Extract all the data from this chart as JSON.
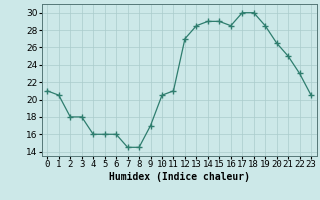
{
  "x": [
    0,
    1,
    2,
    3,
    4,
    5,
    6,
    7,
    8,
    9,
    10,
    11,
    12,
    13,
    14,
    15,
    16,
    17,
    18,
    19,
    20,
    21,
    22,
    23
  ],
  "y": [
    21.0,
    20.5,
    18.0,
    18.0,
    16.0,
    16.0,
    16.0,
    14.5,
    14.5,
    17.0,
    20.5,
    21.0,
    27.0,
    28.5,
    29.0,
    29.0,
    28.5,
    30.0,
    30.0,
    28.5,
    26.5,
    25.0,
    23.0,
    20.5
  ],
  "line_color": "#2e7d6e",
  "marker": "+",
  "marker_size": 5,
  "bg_color": "#cce8e8",
  "grid_color": "#aacccc",
  "xlabel": "Humidex (Indice chaleur)",
  "ylim": [
    13.5,
    31
  ],
  "xlim": [
    -0.5,
    23.5
  ],
  "yticks": [
    14,
    16,
    18,
    20,
    22,
    24,
    26,
    28,
    30
  ],
  "xtick_labels": [
    "0",
    "1",
    "2",
    "3",
    "4",
    "5",
    "6",
    "7",
    "8",
    "9",
    "10",
    "11",
    "12",
    "13",
    "14",
    "15",
    "16",
    "17",
    "18",
    "19",
    "20",
    "21",
    "22",
    "23"
  ],
  "xlabel_fontsize": 7,
  "tick_fontsize": 6.5
}
